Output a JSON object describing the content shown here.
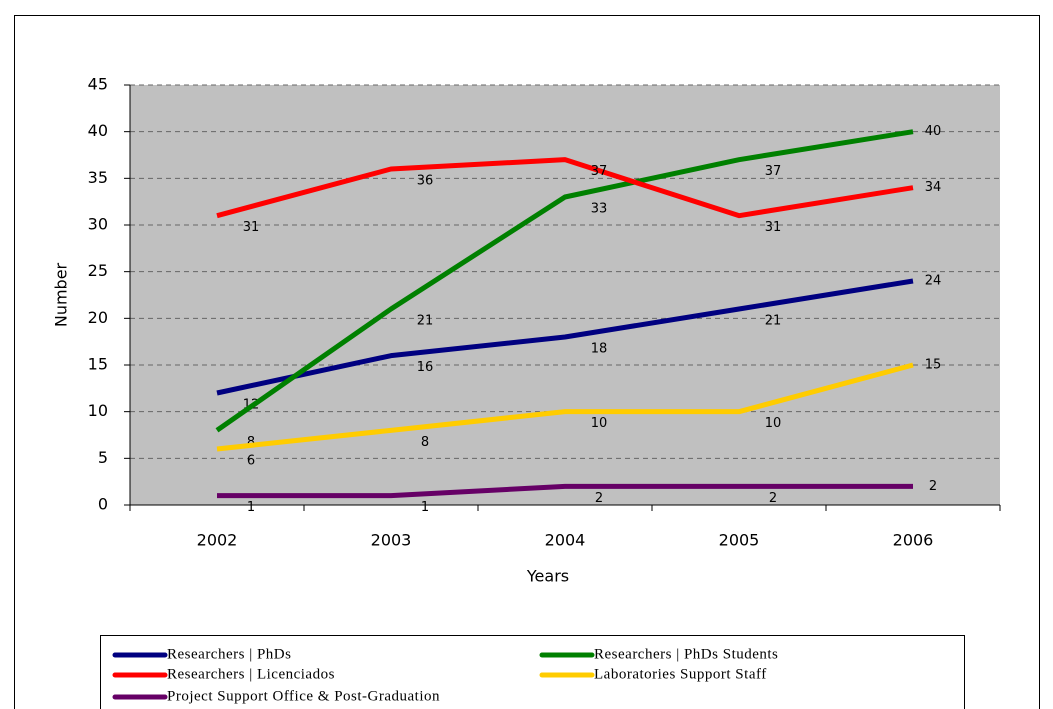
{
  "chart_data": {
    "type": "line",
    "xlabel": "Years",
    "ylabel": "Number",
    "categories": [
      "2002",
      "2003",
      "2004",
      "2005",
      "2006"
    ],
    "ylim": [
      0,
      45
    ],
    "yticks": [
      0,
      5,
      10,
      15,
      20,
      25,
      30,
      35,
      40,
      45
    ],
    "grid": true,
    "legend": "bottom",
    "series": [
      {
        "name": "Researchers | PhDs",
        "color": "#000080",
        "values": [
          12,
          16,
          18,
          21,
          24
        ]
      },
      {
        "name": "Researchers | PhDs Students",
        "color": "#008000",
        "values": [
          8,
          21,
          33,
          37,
          40
        ]
      },
      {
        "name": "Researchers | Licenciados",
        "color": "#ff0000",
        "values": [
          31,
          36,
          37,
          31,
          34
        ]
      },
      {
        "name": "Laboratories Support Staff",
        "color": "#ffcc00",
        "values": [
          6,
          8,
          10,
          10,
          15
        ]
      },
      {
        "name": "Project Support Office & Post-Graduation",
        "color": "#660066",
        "values": [
          1,
          1,
          2,
          2,
          2
        ]
      }
    ]
  }
}
